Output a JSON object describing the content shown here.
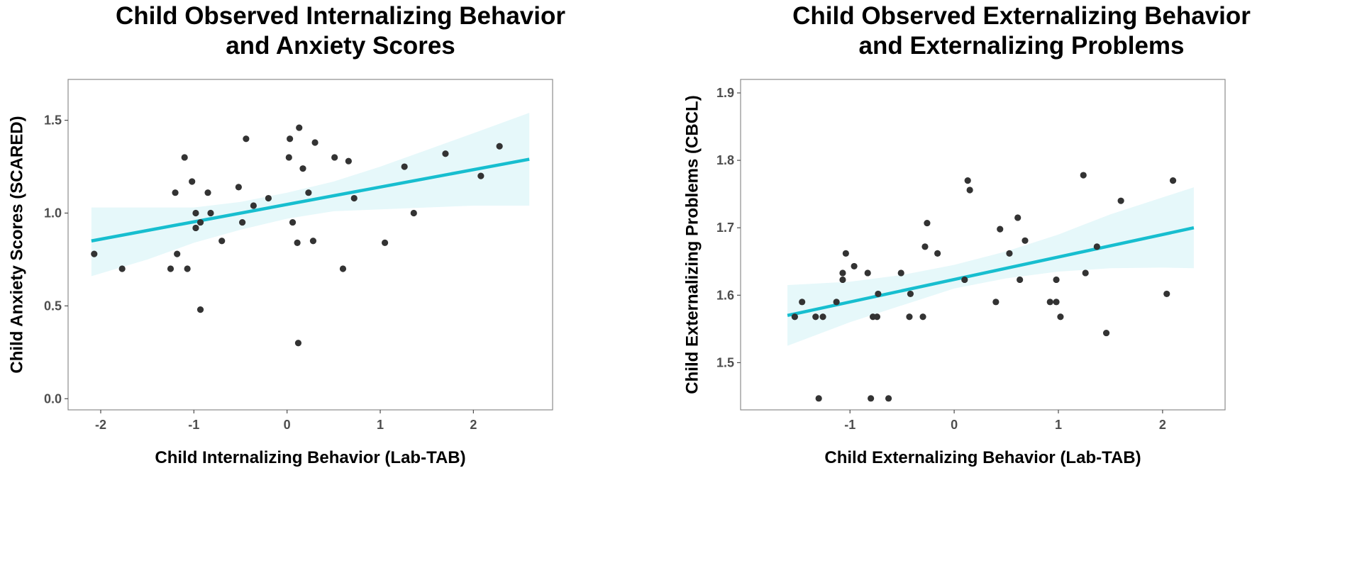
{
  "chart_data": [
    {
      "type": "scatter",
      "title_lines": [
        "Child Observed Internalizing Behavior",
        "and Anxiety Scores"
      ],
      "xlabel": "Child Internalizing Behavior (Lab-TAB)",
      "ylabel": "Child Anxiety Scores (SCARED)",
      "xlim": [
        -2.35,
        2.85
      ],
      "ylim": [
        -0.06,
        1.72
      ],
      "x_ticks": [
        -2,
        -1,
        0,
        1,
        2
      ],
      "x_tick_labels": [
        "-2",
        "-1",
        "0",
        "1",
        "2"
      ],
      "y_ticks": [
        0,
        0.5,
        1,
        1.5
      ],
      "y_tick_labels": [
        "0.0",
        "0.5",
        "1.0",
        "1.5"
      ],
      "points": [
        [
          -2.07,
          0.78
        ],
        [
          -1.77,
          0.7
        ],
        [
          -1.25,
          0.7
        ],
        [
          -1.2,
          1.11
        ],
        [
          -1.18,
          0.78
        ],
        [
          -1.1,
          1.3
        ],
        [
          -1.07,
          0.7
        ],
        [
          -1.02,
          1.17
        ],
        [
          -0.98,
          1.0
        ],
        [
          -0.98,
          0.92
        ],
        [
          -0.93,
          0.95
        ],
        [
          -0.93,
          0.48
        ],
        [
          -0.85,
          1.11
        ],
        [
          -0.82,
          1.0
        ],
        [
          -0.7,
          0.85
        ],
        [
          -0.52,
          1.14
        ],
        [
          -0.48,
          0.95
        ],
        [
          -0.44,
          1.4
        ],
        [
          -0.36,
          1.04
        ],
        [
          -0.2,
          1.08
        ],
        [
          0.02,
          1.3
        ],
        [
          0.03,
          1.4
        ],
        [
          0.06,
          0.95
        ],
        [
          0.11,
          0.84
        ],
        [
          0.13,
          1.46
        ],
        [
          0.12,
          0.3
        ],
        [
          0.17,
          1.24
        ],
        [
          0.23,
          1.11
        ],
        [
          0.28,
          0.85
        ],
        [
          0.3,
          1.38
        ],
        [
          0.51,
          1.3
        ],
        [
          0.6,
          0.7
        ],
        [
          0.66,
          1.28
        ],
        [
          0.72,
          1.08
        ],
        [
          1.05,
          0.84
        ],
        [
          1.26,
          1.25
        ],
        [
          1.36,
          1.0
        ],
        [
          1.7,
          1.32
        ],
        [
          2.08,
          1.2
        ],
        [
          2.28,
          1.36
        ]
      ],
      "fit_line": {
        "x": [
          -2.1,
          2.6
        ],
        "y": [
          0.85,
          1.29
        ]
      },
      "confidence_band": {
        "x": [
          -2.1,
          -1.5,
          -1.0,
          -0.5,
          0.0,
          0.5,
          1.0,
          1.5,
          2.0,
          2.6
        ],
        "upper": [
          1.03,
          1.03,
          1.03,
          1.06,
          1.11,
          1.17,
          1.25,
          1.34,
          1.43,
          1.54
        ],
        "lower": [
          0.66,
          0.75,
          0.84,
          0.91,
          0.97,
          1.01,
          1.02,
          1.03,
          1.04,
          1.04
        ]
      },
      "colors": {
        "line": "#17becf",
        "band": "#e6f8fa",
        "points": "#333333",
        "frame": "#8c8c8c"
      }
    },
    {
      "type": "scatter",
      "title_lines": [
        "Child Observed Externalizing Behavior",
        "and Externalizing Problems"
      ],
      "xlabel": "Child Externalizing Behavior (Lab-TAB)",
      "ylabel": "Child Externalizing Problems (CBCL)",
      "xlim": [
        -2.05,
        2.6
      ],
      "ylim": [
        1.43,
        1.92
      ],
      "x_ticks": [
        -1,
        0,
        1,
        2
      ],
      "x_tick_labels": [
        "-1",
        "0",
        "1",
        "2"
      ],
      "y_ticks": [
        1.5,
        1.6,
        1.7,
        1.8,
        1.9
      ],
      "y_tick_labels": [
        "1.5",
        "1.6",
        "1.7",
        "1.8",
        "1.9"
      ],
      "points": [
        [
          -1.53,
          1.568
        ],
        [
          -1.46,
          1.59
        ],
        [
          -1.33,
          1.568
        ],
        [
          -1.3,
          1.447
        ],
        [
          -1.26,
          1.568
        ],
        [
          -1.13,
          1.59
        ],
        [
          -1.07,
          1.633
        ],
        [
          -1.07,
          1.623
        ],
        [
          -1.04,
          1.662
        ],
        [
          -0.96,
          1.643
        ],
        [
          -0.83,
          1.633
        ],
        [
          -0.8,
          1.447
        ],
        [
          -0.78,
          1.568
        ],
        [
          -0.74,
          1.568
        ],
        [
          -0.73,
          1.602
        ],
        [
          -0.63,
          1.447
        ],
        [
          -0.51,
          1.633
        ],
        [
          -0.43,
          1.568
        ],
        [
          -0.42,
          1.602
        ],
        [
          -0.3,
          1.568
        ],
        [
          -0.28,
          1.672
        ],
        [
          -0.26,
          1.707
        ],
        [
          -0.16,
          1.662
        ],
        [
          0.1,
          1.623
        ],
        [
          0.13,
          1.77
        ],
        [
          0.15,
          1.756
        ],
        [
          0.4,
          1.59
        ],
        [
          0.44,
          1.698
        ],
        [
          0.53,
          1.662
        ],
        [
          0.61,
          1.715
        ],
        [
          0.63,
          1.623
        ],
        [
          0.68,
          1.681
        ],
        [
          0.92,
          1.59
        ],
        [
          0.98,
          1.623
        ],
        [
          0.98,
          1.59
        ],
        [
          1.02,
          1.568
        ],
        [
          1.24,
          1.778
        ],
        [
          1.26,
          1.633
        ],
        [
          1.37,
          1.672
        ],
        [
          1.46,
          1.544
        ],
        [
          1.6,
          1.74
        ],
        [
          2.04,
          1.602
        ],
        [
          2.1,
          1.77
        ]
      ],
      "fit_line": {
        "x": [
          -1.6,
          2.3
        ],
        "y": [
          1.57,
          1.7
        ]
      },
      "confidence_band": {
        "x": [
          -1.6,
          -1.0,
          -0.5,
          0.0,
          0.5,
          1.0,
          1.5,
          2.0,
          2.3
        ],
        "upper": [
          1.615,
          1.62,
          1.63,
          1.645,
          1.665,
          1.69,
          1.72,
          1.745,
          1.76
        ],
        "lower": [
          1.525,
          1.56,
          1.585,
          1.61,
          1.625,
          1.635,
          1.64,
          1.641,
          1.64
        ]
      },
      "colors": {
        "line": "#17becf",
        "band": "#e6f8fa",
        "points": "#333333",
        "frame": "#8c8c8c"
      }
    }
  ]
}
